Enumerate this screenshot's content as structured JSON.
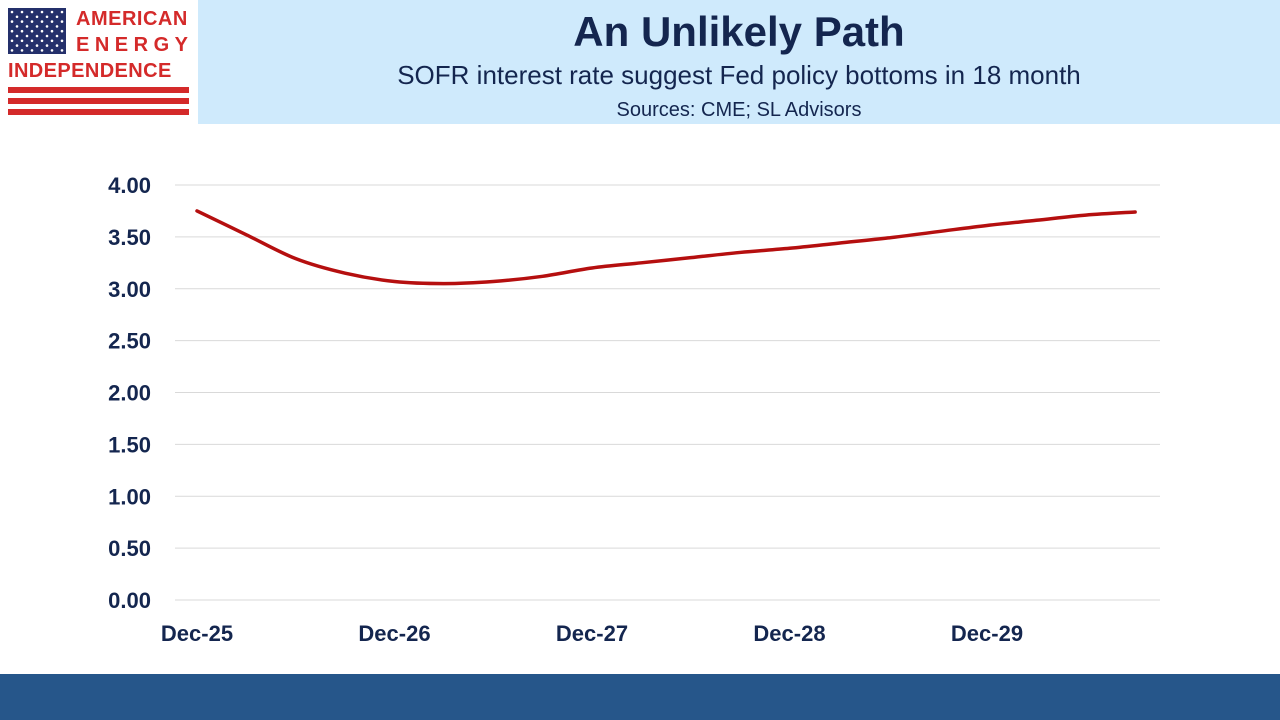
{
  "logo": {
    "line1": "AMERICAN",
    "line2": "ENERGY",
    "line3": "INDEPENDENCE",
    "colors": {
      "red": "#d42a2a",
      "blue": "#24306b"
    }
  },
  "header": {
    "title": "An Unlikely Path",
    "subtitle": "SOFR interest rate suggest Fed policy bottoms in 18 month",
    "sources": "Sources: CME; SL Advisors"
  },
  "chart_data": {
    "type": "line",
    "title": "",
    "xlabel": "",
    "ylabel": "",
    "ylim": [
      0,
      4
    ],
    "yticks": [
      "0.00",
      "0.50",
      "1.00",
      "1.50",
      "2.00",
      "2.50",
      "3.00",
      "3.50",
      "4.00"
    ],
    "xticks": [
      "Dec-25",
      "Dec-26",
      "Dec-27",
      "Dec-28",
      "Dec-29"
    ],
    "grid": true,
    "legend": "none",
    "series": [
      {
        "color": "#b50f0f",
        "points": [
          {
            "x": "2025-12",
            "y": 3.75
          },
          {
            "x": "2026-03",
            "y": 3.52
          },
          {
            "x": "2026-06",
            "y": 3.29
          },
          {
            "x": "2026-09",
            "y": 3.15
          },
          {
            "x": "2026-12",
            "y": 3.07
          },
          {
            "x": "2027-03",
            "y": 3.05
          },
          {
            "x": "2027-06",
            "y": 3.07
          },
          {
            "x": "2027-09",
            "y": 3.12
          },
          {
            "x": "2027-12",
            "y": 3.2
          },
          {
            "x": "2028-03",
            "y": 3.25
          },
          {
            "x": "2028-06",
            "y": 3.3
          },
          {
            "x": "2028-09",
            "y": 3.35
          },
          {
            "x": "2028-12",
            "y": 3.39
          },
          {
            "x": "2029-03",
            "y": 3.44
          },
          {
            "x": "2029-06",
            "y": 3.49
          },
          {
            "x": "2029-09",
            "y": 3.55
          },
          {
            "x": "2029-12",
            "y": 3.61
          },
          {
            "x": "2030-03",
            "y": 3.66
          },
          {
            "x": "2030-06",
            "y": 3.71
          },
          {
            "x": "2030-09",
            "y": 3.74
          }
        ]
      }
    ]
  }
}
